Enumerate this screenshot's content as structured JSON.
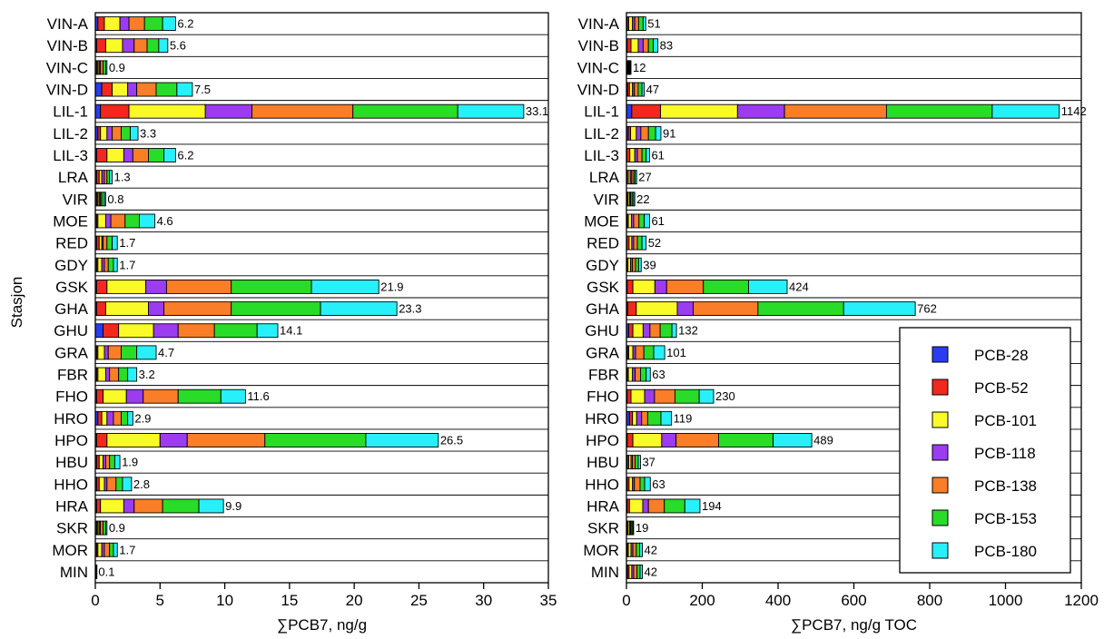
{
  "y_axis_label": "Stasjon",
  "legend": {
    "placement": "bottom-right of right panel",
    "items": [
      {
        "name": "PCB-28",
        "color": "#2a3cf0"
      },
      {
        "name": "PCB-52",
        "color": "#f0281e"
      },
      {
        "name": "PCB-101",
        "color": "#fafa28"
      },
      {
        "name": "PCB-118",
        "color": "#9b3cf0"
      },
      {
        "name": "PCB-138",
        "color": "#fa7d28"
      },
      {
        "name": "PCB-153",
        "color": "#28dc28"
      },
      {
        "name": "PCB-180",
        "color": "#28f0fa"
      }
    ]
  },
  "chart_data": [
    {
      "type": "bar",
      "orientation": "horizontal",
      "stacked": true,
      "xlabel": "∑PCB7, ng/g",
      "ylabel": "Stasjon",
      "xlim": [
        0,
        35
      ],
      "xticks": [
        0,
        5,
        10,
        15,
        20,
        25,
        30,
        35
      ],
      "grid": "horizontal",
      "categories": [
        "VIN-A",
        "VIN-B",
        "VIN-C",
        "VIN-D",
        "LIL-1",
        "LIL-2",
        "LIL-3",
        "LRA",
        "VIR",
        "MOE",
        "RED",
        "GDY",
        "GSK",
        "GHA",
        "GHU",
        "GRA",
        "FBR",
        "FHO",
        "HRO",
        "HPO",
        "HBU",
        "HHO",
        "HRA",
        "SKR",
        "MOR",
        "MIN"
      ],
      "totals": [
        6.2,
        5.6,
        0.9,
        7.5,
        33.1,
        3.3,
        6.2,
        1.3,
        0.8,
        4.6,
        1.7,
        1.7,
        21.9,
        23.3,
        14.1,
        4.7,
        3.2,
        11.6,
        2.9,
        26.5,
        1.9,
        2.8,
        9.9,
        0.9,
        1.7,
        0.1
      ],
      "total_labels": [
        "6.2",
        "5.6",
        "0.9",
        "7.5",
        "33.1",
        "3.3",
        "6.2",
        "1.3",
        "0.8",
        "4.6",
        "1.7",
        "1.7",
        "21.9",
        "23.3",
        "14.1",
        "4.7",
        "3.2",
        "11.6",
        "2.9",
        "26.5",
        "1.9",
        "2.8",
        "9.9",
        "0.9",
        "1.7",
        "0.1"
      ],
      "series": [
        {
          "name": "PCB-28",
          "values": [
            0.2,
            0.1,
            0.1,
            0.5,
            0.4,
            0.2,
            0.1,
            0.1,
            0.1,
            0.1,
            0.1,
            0.1,
            0.1,
            0.1,
            0.6,
            0.1,
            0.1,
            0.1,
            0.2,
            0.1,
            0.1,
            0.1,
            0.1,
            0.1,
            0.1,
            0.01
          ]
        },
        {
          "name": "PCB-52",
          "values": [
            0.5,
            0.7,
            0.1,
            0.8,
            2.2,
            0.2,
            0.8,
            0.2,
            0.1,
            0.1,
            0.2,
            0.1,
            0.8,
            0.7,
            1.2,
            0.1,
            0.1,
            0.5,
            0.3,
            0.8,
            0.2,
            0.2,
            0.3,
            0.1,
            0.1,
            0.01
          ]
        },
        {
          "name": "PCB-101",
          "values": [
            1.2,
            1.3,
            0.1,
            1.2,
            5.9,
            0.5,
            1.3,
            0.2,
            0.1,
            0.6,
            0.2,
            0.3,
            3.0,
            3.3,
            2.7,
            0.5,
            0.6,
            1.8,
            0.4,
            4.1,
            0.3,
            0.4,
            1.8,
            0.1,
            0.3,
            0.02
          ]
        },
        {
          "name": "PCB-118",
          "values": [
            0.7,
            0.9,
            0.1,
            0.7,
            3.6,
            0.4,
            0.7,
            0.2,
            0.1,
            0.4,
            0.1,
            0.2,
            1.6,
            1.2,
            1.9,
            0.3,
            0.3,
            1.3,
            0.5,
            2.1,
            0.2,
            0.2,
            0.8,
            0.1,
            0.2,
            0.01
          ]
        },
        {
          "name": "PCB-138",
          "values": [
            1.2,
            1.0,
            0.2,
            1.5,
            7.8,
            0.7,
            1.2,
            0.2,
            0.1,
            1.1,
            0.3,
            0.3,
            5.0,
            5.2,
            2.8,
            1.0,
            0.7,
            2.7,
            0.6,
            6.0,
            0.3,
            0.7,
            2.2,
            0.2,
            0.4,
            0.02
          ]
        },
        {
          "name": "PCB-153",
          "values": [
            1.4,
            0.9,
            0.2,
            1.6,
            8.1,
            0.7,
            1.2,
            0.2,
            0.2,
            1.1,
            0.4,
            0.4,
            6.2,
            6.9,
            3.3,
            1.2,
            0.7,
            3.3,
            0.5,
            7.8,
            0.4,
            0.5,
            2.8,
            0.2,
            0.3,
            0.02
          ]
        },
        {
          "name": "PCB-180",
          "values": [
            1.0,
            0.7,
            0.1,
            1.2,
            5.1,
            0.6,
            0.9,
            0.2,
            0.1,
            1.2,
            0.4,
            0.3,
            5.2,
            5.9,
            1.6,
            1.5,
            0.7,
            1.9,
            0.4,
            5.6,
            0.4,
            0.7,
            1.9,
            0.1,
            0.3,
            0.02
          ]
        }
      ]
    },
    {
      "type": "bar",
      "orientation": "horizontal",
      "stacked": true,
      "xlabel": "∑PCB7, ng/g TOC",
      "xlim": [
        0,
        1200
      ],
      "xticks": [
        0,
        200,
        400,
        600,
        800,
        1000,
        1200
      ],
      "grid": "horizontal",
      "categories": [
        "VIN-A",
        "VIN-B",
        "VIN-C",
        "VIN-D",
        "LIL-1",
        "LIL-2",
        "LIL-3",
        "LRA",
        "VIR",
        "MOE",
        "RED",
        "GDY",
        "GSK",
        "GHA",
        "GHU",
        "GRA",
        "FBR",
        "FHO",
        "HRO",
        "HPO",
        "HBU",
        "HHO",
        "HRA",
        "SKR",
        "MOR",
        "MIN"
      ],
      "totals": [
        51,
        83,
        12,
        47,
        1142,
        91,
        61,
        27,
        22,
        61,
        52,
        39,
        424,
        762,
        132,
        101,
        63,
        230,
        119,
        489,
        37,
        63,
        194,
        19,
        42,
        42
      ],
      "total_labels": [
        "51",
        "83",
        "12",
        "47",
        "1142",
        "91",
        "61",
        "27",
        "22",
        "61",
        "52",
        "39",
        "424",
        "762",
        "132",
        "101",
        "63",
        "230",
        "119",
        "489",
        "37",
        "63",
        "194",
        "19",
        "42",
        "42"
      ],
      "series": [
        {
          "name": "PCB-28",
          "values": [
            2,
            2,
            1,
            3,
            14,
            5,
            1,
            1,
            1,
            2,
            1,
            1,
            2,
            3,
            6,
            3,
            2,
            2,
            8,
            2,
            2,
            2,
            2,
            1,
            2,
            3
          ]
        },
        {
          "name": "PCB-52",
          "values": [
            4,
            10,
            2,
            5,
            76,
            6,
            8,
            4,
            3,
            3,
            6,
            3,
            15,
            23,
            11,
            3,
            3,
            10,
            8,
            15,
            4,
            5,
            6,
            3,
            3,
            4
          ]
        },
        {
          "name": "PCB-101",
          "values": [
            10,
            19,
            2,
            8,
            203,
            15,
            13,
            5,
            4,
            8,
            7,
            7,
            58,
            108,
            27,
            11,
            11,
            36,
            11,
            76,
            6,
            9,
            35,
            4,
            7,
            7
          ]
        },
        {
          "name": "PCB-118",
          "values": [
            6,
            13,
            1,
            5,
            124,
            12,
            7,
            4,
            3,
            6,
            5,
            5,
            31,
            42,
            18,
            7,
            7,
            26,
            13,
            38,
            4,
            5,
            15,
            3,
            5,
            5
          ]
        },
        {
          "name": "PCB-138",
          "values": [
            10,
            14,
            2,
            10,
            269,
            20,
            12,
            5,
            4,
            14,
            10,
            8,
            97,
            171,
            27,
            22,
            14,
            54,
            16,
            112,
            7,
            15,
            42,
            3,
            9,
            9
          ]
        },
        {
          "name": "PCB-153",
          "values": [
            12,
            13,
            2,
            10,
            279,
            19,
            11,
            4,
            4,
            14,
            12,
            8,
            119,
            226,
            31,
            26,
            15,
            64,
            35,
            144,
            8,
            12,
            54,
            3,
            9,
            8
          ]
        },
        {
          "name": "PCB-180",
          "values": [
            7,
            12,
            2,
            6,
            177,
            14,
            9,
            4,
            3,
            14,
            11,
            7,
            102,
            189,
            12,
            29,
            11,
            38,
            28,
            102,
            6,
            15,
            40,
            2,
            7,
            6
          ]
        }
      ]
    }
  ]
}
